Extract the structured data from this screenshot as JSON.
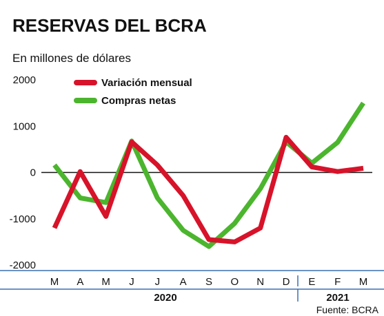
{
  "chart_data": {
    "type": "line",
    "title": "RESERVAS DEL BCRA",
    "subtitle": "En millones de dólares",
    "source": "Fuente: BCRA",
    "categories": [
      "M",
      "A",
      "M",
      "J",
      "J",
      "A",
      "S",
      "O",
      "N",
      "D",
      "E",
      "F",
      "M"
    ],
    "years": [
      {
        "label": "2020",
        "from_index": 0,
        "to_index": 9
      },
      {
        "label": "2021",
        "from_index": 10,
        "to_index": 12
      }
    ],
    "yticks": [
      2000,
      1000,
      0,
      -1000,
      -2000
    ],
    "ylim": [
      -2000,
      2000
    ],
    "legend_position": "top-left",
    "grid": false,
    "series": [
      {
        "name": "Variación mensual",
        "color": "#d7132a",
        "values": [
          -1200,
          20,
          -950,
          660,
          160,
          -500,
          -1450,
          -1500,
          -1200,
          760,
          120,
          20,
          90
        ]
      },
      {
        "name": "Compras netas",
        "color": "#4cb52e",
        "values": [
          160,
          -550,
          -650,
          680,
          -550,
          -1250,
          -1600,
          -1100,
          -350,
          660,
          200,
          650,
          1500
        ]
      }
    ]
  }
}
